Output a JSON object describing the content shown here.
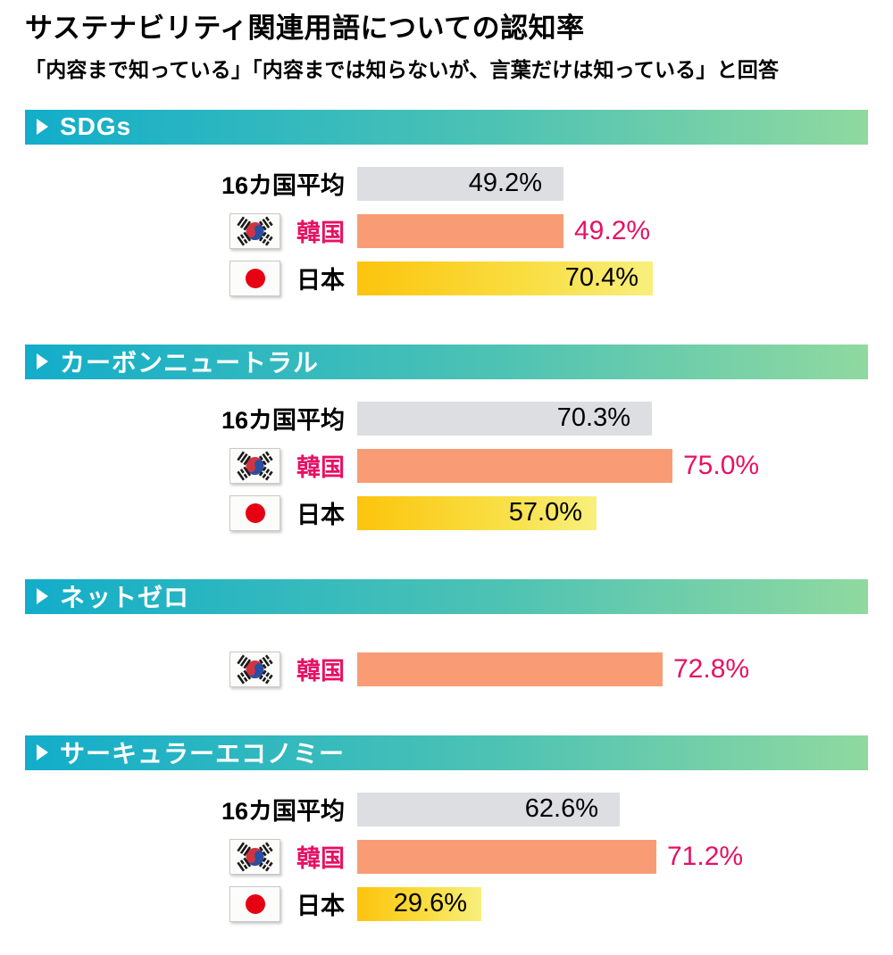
{
  "chart_data": {
    "type": "bar",
    "orientation": "horizontal",
    "title": "サステナビリティ関連用語についての認知率",
    "subtitle": "「内容まで知っている」「内容までは知らないが、言葉だけは知っている」と回答",
    "unit": "%",
    "value_axis_range": [
      0,
      100
    ],
    "legend_position": "none",
    "grid": false,
    "sections": [
      {
        "term": "SDGs",
        "rows": [
          {
            "entity": "16カ国平均",
            "flag": null,
            "value": 49.2,
            "value_label": "49.2%",
            "bar_style": "average",
            "value_position": "inside"
          },
          {
            "entity": "韓国",
            "flag": "korea",
            "value": 49.2,
            "value_label": "49.2%",
            "bar_style": "korea",
            "value_position": "outside"
          },
          {
            "entity": "日本",
            "flag": "japan",
            "value": 70.4,
            "value_label": "70.4%",
            "bar_style": "japan",
            "value_position": "inside"
          }
        ]
      },
      {
        "term": "カーボンニュートラル",
        "rows": [
          {
            "entity": "16カ国平均",
            "flag": null,
            "value": 70.3,
            "value_label": "70.3%",
            "bar_style": "average",
            "value_position": "inside"
          },
          {
            "entity": "韓国",
            "flag": "korea",
            "value": 75.0,
            "value_label": "75.0%",
            "bar_style": "korea",
            "value_position": "outside"
          },
          {
            "entity": "日本",
            "flag": "japan",
            "value": 57.0,
            "value_label": "57.0%",
            "bar_style": "japan",
            "value_position": "inside"
          }
        ]
      },
      {
        "term": "ネットゼロ",
        "rows": [
          {
            "entity": "韓国",
            "flag": "korea",
            "value": 72.8,
            "value_label": "72.8%",
            "bar_style": "korea",
            "value_position": "outside"
          }
        ]
      },
      {
        "term": "サーキュラーエコノミー",
        "rows": [
          {
            "entity": "16カ国平均",
            "flag": null,
            "value": 62.6,
            "value_label": "62.6%",
            "bar_style": "average",
            "value_position": "inside"
          },
          {
            "entity": "韓国",
            "flag": "korea",
            "value": 71.2,
            "value_label": "71.2%",
            "bar_style": "korea",
            "value_position": "outside"
          },
          {
            "entity": "日本",
            "flag": "japan",
            "value": 29.6,
            "value_label": "29.6%",
            "bar_style": "japan",
            "value_position": "inside"
          }
        ]
      }
    ]
  },
  "colors": {
    "header_gradient_start": "#12adca",
    "header_gradient_end": "#90d9a0",
    "average_bar": "#dcdee1",
    "korea_bar": "#f99c75",
    "japan_bar_gradient_start": "#fcc40d",
    "japan_bar_gradient_end": "#f8ef7d",
    "korea_accent_text": "#e61164",
    "value_text": "#000000",
    "japan_flag_red": "#e60012",
    "korea_taegeuk_red": "#d13440",
    "korea_taegeuk_blue": "#2a4fa2"
  }
}
